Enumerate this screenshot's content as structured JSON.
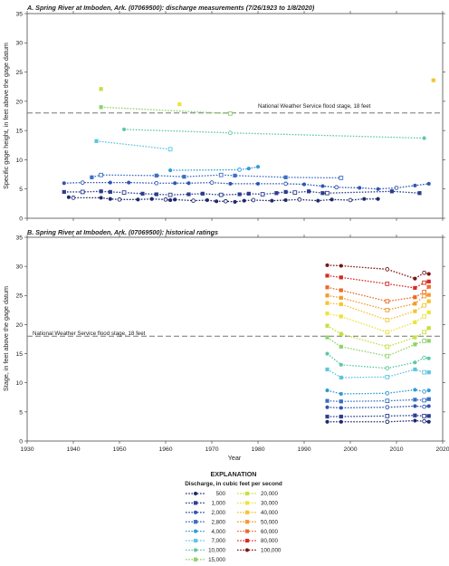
{
  "colors": {
    "500": "#1f2a6b",
    "1000": "#2b3d8f",
    "2000": "#2f56b0",
    "2800": "#3a6fc4",
    "4000": "#2f9bd6",
    "7000": "#5cc5e0",
    "10000": "#5ec8a2",
    "15000": "#8fd36a",
    "20000": "#c6df3e",
    "30000": "#ede33a",
    "40000": "#f5c431",
    "50000": "#f39a2e",
    "60000": "#ec6a2a",
    "80000": "#d42a26",
    "100000": "#7a1416",
    "flood_line": "#777777"
  },
  "chart_data": [
    {
      "type": "scatter",
      "title": "A. Spring River at Imboden, Ark. (07069500): discharge measurements (7/26/1923 to 1/8/2020)",
      "ylabel": "Specific gage height, in feet above the gage datum",
      "xlim": [
        1930,
        2020
      ],
      "ylim": [
        0,
        35
      ],
      "xticks": [
        1930,
        1940,
        1950,
        1960,
        1970,
        1980,
        1990,
        2000,
        2010,
        2020
      ],
      "yticks": [
        0,
        5,
        10,
        15,
        20,
        25,
        30,
        35
      ],
      "reference_line": {
        "y": 18,
        "label": "National Weather Service flood stage, 18 feet"
      },
      "series": [
        {
          "name": "500",
          "points": [
            [
              1939,
              3.6
            ],
            [
              1940,
              3.5
            ],
            [
              1946,
              3.5
            ],
            [
              1948,
              3.3
            ],
            [
              1950,
              3.2
            ],
            [
              1954,
              3.2
            ],
            [
              1957,
              3.3
            ],
            [
              1960,
              3.2
            ],
            [
              1961,
              3.1
            ],
            [
              1962,
              3.2
            ],
            [
              1966,
              3.0
            ],
            [
              1969,
              3.1
            ],
            [
              1971,
              2.9
            ],
            [
              1973,
              2.9
            ],
            [
              1975,
              2.8
            ],
            [
              1977,
              3.0
            ],
            [
              1979,
              3.1
            ],
            [
              1983,
              3.0
            ],
            [
              1986,
              3.1
            ],
            [
              1989,
              3.2
            ],
            [
              1993,
              3.0
            ],
            [
              1996,
              3.2
            ],
            [
              2000,
              3.1
            ],
            [
              2003,
              3.3
            ],
            [
              2006,
              3.3
            ]
          ]
        },
        {
          "name": "1000",
          "points": [
            [
              1938,
              4.5
            ],
            [
              1942,
              4.5
            ],
            [
              1946,
              4.6
            ],
            [
              1948,
              4.5
            ],
            [
              1951,
              4.4
            ],
            [
              1955,
              4.2
            ],
            [
              1958,
              4.1
            ],
            [
              1961,
              4.0
            ],
            [
              1965,
              4.1
            ],
            [
              1968,
              4.2
            ],
            [
              1972,
              4.0
            ],
            [
              1976,
              4.1
            ],
            [
              1978,
              4.2
            ],
            [
              1981,
              4.1
            ],
            [
              1984,
              4.3
            ],
            [
              1986,
              4.5
            ],
            [
              1988,
              4.4
            ],
            [
              1991,
              4.6
            ],
            [
              1994,
              4.3
            ],
            [
              1995,
              4.3
            ],
            [
              2009,
              4.6
            ],
            [
              2015,
              4.3
            ]
          ]
        },
        {
          "name": "2000",
          "points": [
            [
              1938,
              6.0
            ],
            [
              1942,
              6.1
            ],
            [
              1948,
              6.1
            ],
            [
              1952,
              6.1
            ],
            [
              1958,
              6.0
            ],
            [
              1962,
              6.0
            ],
            [
              1965,
              6.0
            ],
            [
              1970,
              6.1
            ],
            [
              1974,
              5.9
            ],
            [
              1980,
              5.9
            ],
            [
              1986,
              5.9
            ],
            [
              1990,
              5.8
            ],
            [
              1994,
              5.5
            ],
            [
              1997,
              5.3
            ],
            [
              2002,
              5.2
            ],
            [
              2006,
              5.0
            ],
            [
              2010,
              5.2
            ],
            [
              2014,
              5.6
            ],
            [
              2017,
              5.9
            ]
          ]
        },
        {
          "name": "2800",
          "points": [
            [
              1944,
              7.0
            ],
            [
              1946,
              7.4
            ],
            [
              1958,
              7.3
            ],
            [
              1964,
              7.1
            ],
            [
              1972,
              7.4
            ],
            [
              1975,
              7.3
            ],
            [
              1986,
              7.0
            ],
            [
              1998,
              6.9
            ]
          ]
        },
        {
          "name": "4000",
          "points": [
            [
              1961,
              8.2
            ],
            [
              1976,
              8.3
            ],
            [
              1978,
              8.5
            ],
            [
              1980,
              8.8
            ]
          ]
        },
        {
          "name": "7000",
          "points": [
            [
              1945,
              13.2
            ],
            [
              1961,
              11.8
            ]
          ]
        },
        {
          "name": "10000",
          "points": [
            [
              1951,
              15.2
            ],
            [
              1974,
              14.6
            ],
            [
              2016,
              13.7
            ]
          ]
        },
        {
          "name": "15000",
          "points": [
            [
              1946,
              19.0
            ],
            [
              1974,
              17.9
            ]
          ]
        },
        {
          "name": "20000",
          "points": [
            [
              1946,
              22.1
            ]
          ]
        },
        {
          "name": "30000",
          "points": [
            [
              1963,
              19.5
            ]
          ]
        },
        {
          "name": "40000",
          "points": [
            [
              2018,
              23.6
            ]
          ]
        }
      ]
    },
    {
      "type": "line",
      "title": "B. Spring River at Imboden, Ark. (07069500): historical ratings",
      "xlabel": "Year",
      "ylabel": "Stage, in feet above the gage datum",
      "xlim": [
        1930,
        2020
      ],
      "ylim": [
        0,
        35
      ],
      "xticks": [
        1930,
        1940,
        1950,
        1960,
        1970,
        1980,
        1990,
        2000,
        2010,
        2020
      ],
      "yticks": [
        0,
        5,
        10,
        15,
        20,
        25,
        30,
        35
      ],
      "reference_line": {
        "y": 18,
        "label": "National Weather Service flood stage, 18 feet"
      },
      "x": [
        1995,
        1998,
        2008,
        2014,
        2016,
        2017
      ],
      "series": [
        {
          "name": "500",
          "values": [
            3.3,
            3.3,
            3.3,
            3.5,
            3.4,
            3.3
          ]
        },
        {
          "name": "1000",
          "values": [
            4.2,
            4.2,
            4.3,
            4.4,
            4.3,
            4.3
          ]
        },
        {
          "name": "2000",
          "values": [
            5.8,
            5.7,
            5.8,
            6.0,
            5.9,
            6.0
          ]
        },
        {
          "name": "2800",
          "values": [
            6.9,
            6.8,
            6.9,
            7.1,
            7.0,
            7.2
          ]
        },
        {
          "name": "4000",
          "values": [
            8.7,
            8.1,
            8.2,
            8.8,
            8.5,
            8.7
          ]
        },
        {
          "name": "7000",
          "values": [
            12.3,
            10.9,
            11.0,
            12.3,
            11.8,
            11.8
          ]
        },
        {
          "name": "10000",
          "values": [
            15.0,
            13.1,
            12.5,
            13.5,
            14.3,
            14.2
          ]
        },
        {
          "name": "15000",
          "values": [
            17.8,
            16.2,
            14.6,
            16.6,
            17.2,
            17.2
          ]
        },
        {
          "name": "20000",
          "values": [
            19.8,
            18.4,
            16.2,
            17.8,
            18.7,
            19.4
          ]
        },
        {
          "name": "30000",
          "values": [
            21.9,
            21.4,
            18.7,
            20.4,
            21.4,
            22.1
          ]
        },
        {
          "name": "40000",
          "values": [
            23.7,
            23.5,
            20.8,
            22.3,
            23.3,
            24.0
          ]
        },
        {
          "name": "50000",
          "values": [
            25.0,
            24.6,
            22.5,
            23.6,
            24.9,
            25.1
          ]
        },
        {
          "name": "60000",
          "values": [
            26.4,
            25.9,
            24.0,
            24.7,
            25.6,
            26.5
          ]
        },
        {
          "name": "80000",
          "values": [
            28.4,
            28.1,
            27.0,
            26.3,
            27.2,
            27.4
          ]
        },
        {
          "name": "100000",
          "values": [
            30.2,
            30.1,
            29.5,
            27.9,
            28.9,
            28.7
          ]
        }
      ]
    }
  ],
  "legend": {
    "title": "EXPLANATION",
    "subtitle": "Discharge, in cubic feet per second",
    "items": [
      "500",
      "1,000",
      "2,000",
      "2,800",
      "4,000",
      "7,000",
      "10,000",
      "15,000",
      "20,000",
      "30,000",
      "40,000",
      "50,000",
      "60,000",
      "80,000",
      "100,000"
    ]
  }
}
